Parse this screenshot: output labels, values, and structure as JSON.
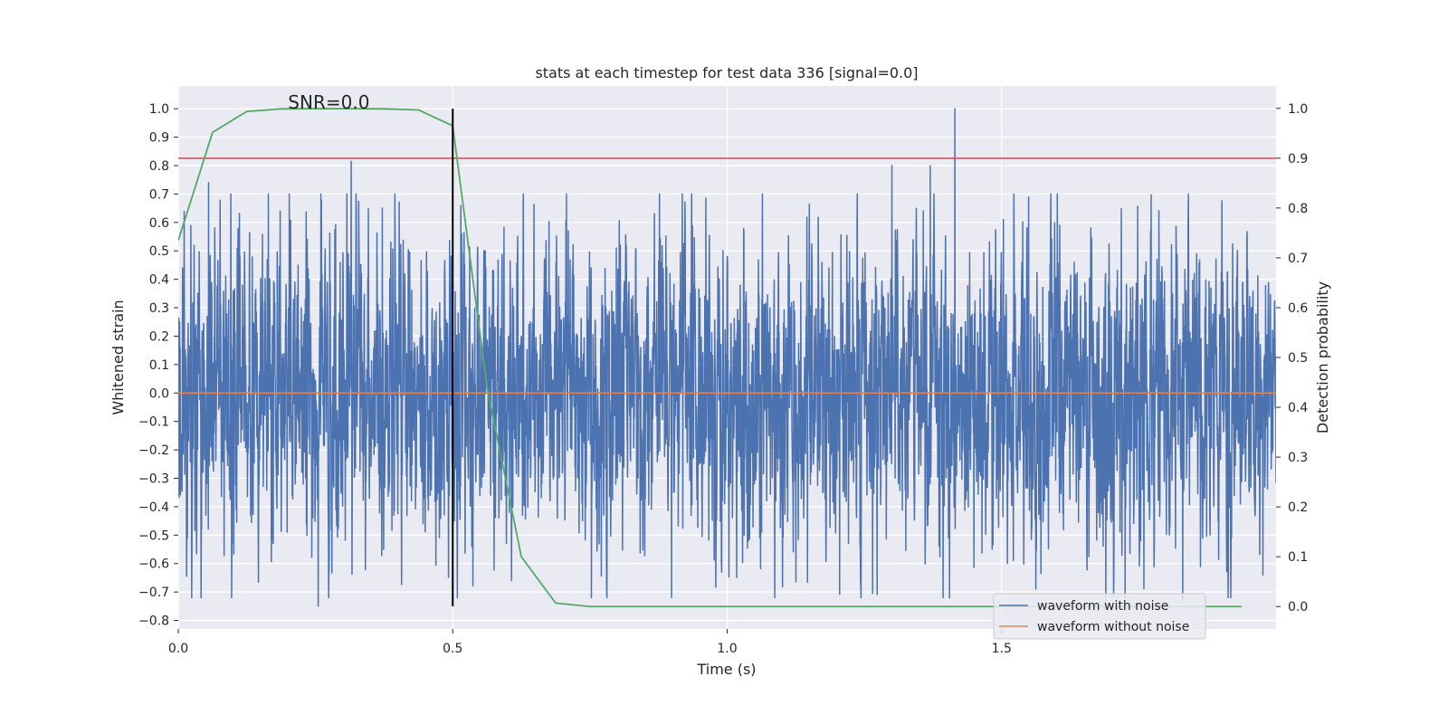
{
  "chart_data": {
    "type": "line",
    "title": "stats at each timestep for test data 336 [signal=0.0]",
    "xlabel": "Time (s)",
    "ylabel_left": "Whitened strain",
    "ylabel_right": "Detection probability",
    "xlim": [
      0.0,
      2.0
    ],
    "ylim_left": [
      -0.83,
      1.08
    ],
    "ylim_right": [
      -0.045,
      1.045
    ],
    "grid": true,
    "x_ticks": [
      0.0,
      0.5,
      1.0,
      1.5
    ],
    "x_tick_labels": [
      "0.0",
      "0.5",
      "1.0",
      "1.5"
    ],
    "y_left_ticks": [
      1.0,
      0.9,
      0.8,
      0.7,
      0.6,
      0.5,
      0.4,
      0.3,
      0.2,
      0.1,
      0.0,
      -0.1,
      -0.2,
      -0.3,
      -0.4,
      -0.5,
      -0.6,
      -0.7,
      -0.8
    ],
    "y_left_tick_labels": [
      "1.0",
      "0.9",
      "0.8",
      "0.7",
      "0.6",
      "0.5",
      "0.4",
      "0.3",
      "0.2",
      "0.1",
      "0.0",
      "−0.1",
      "−0.2",
      "−0.3",
      "−0.4",
      "−0.5",
      "−0.6",
      "−0.7",
      "−0.8"
    ],
    "y_right_ticks": [
      1.0,
      0.9,
      0.8,
      0.7,
      0.6,
      0.5,
      0.4,
      0.3,
      0.2,
      0.1,
      0.0
    ],
    "y_right_tick_labels": [
      "1.0",
      "0.9",
      "0.8",
      "0.7",
      "0.6",
      "0.5",
      "0.4",
      "0.3",
      "0.2",
      "0.1",
      "0.0"
    ],
    "annotation": "SNR=0.0",
    "annotation_position": {
      "x": 0.2,
      "y": 1.0
    },
    "series": [
      {
        "name": "waveform with noise",
        "axis": "left",
        "color": "#4c72b0",
        "x_range": [
          0.0,
          2.0
        ],
        "n_points": 4096,
        "noise_std": 0.25,
        "noise_seed": 336,
        "notable_peaks": [
          {
            "x": 0.055,
            "y": 0.74
          },
          {
            "x": 0.315,
            "y": 0.815
          },
          {
            "x": 0.255,
            "y": -0.75
          },
          {
            "x": 0.515,
            "y": 0.66
          },
          {
            "x": 1.415,
            "y": 1.0
          },
          {
            "x": 1.3,
            "y": 0.8
          },
          {
            "x": 1.37,
            "y": 0.8
          },
          {
            "x": 1.265,
            "y": -0.705
          },
          {
            "x": 1.69,
            "y": -0.745
          },
          {
            "x": 1.83,
            "y": -0.73
          }
        ]
      },
      {
        "name": "waveform without noise",
        "axis": "left",
        "color": "#dd8452",
        "x": [
          0.0,
          2.0
        ],
        "y": [
          0.0,
          0.0
        ]
      },
      {
        "name": "detection probability",
        "axis": "right",
        "color": "#55a868",
        "x": [
          0.0,
          0.0625,
          0.125,
          0.1875,
          0.25,
          0.3125,
          0.375,
          0.4375,
          0.5,
          0.5625,
          0.625,
          0.6875,
          0.75,
          0.8125,
          0.875,
          0.9375,
          1.0,
          1.0625,
          1.125,
          1.1875,
          1.25,
          1.3125,
          1.375,
          1.4375,
          1.5,
          1.5625,
          1.625,
          1.6875,
          1.75,
          1.8125,
          1.875,
          1.9375
        ],
        "y": [
          0.735,
          0.952,
          0.994,
          0.999,
          0.9995,
          0.9995,
          0.999,
          0.997,
          0.965,
          0.44,
          0.1,
          0.007,
          0.0,
          0.0,
          0.0,
          0.0,
          0.0,
          0.0,
          0.0,
          0.0,
          0.0,
          0.0,
          0.0,
          0.0,
          0.0,
          0.0,
          0.0,
          0.0,
          0.0,
          0.0,
          0.0,
          0.0
        ]
      },
      {
        "name": "threshold",
        "axis": "right",
        "color": "#c44e52",
        "y": 0.9
      },
      {
        "name": "marker",
        "axis": "left",
        "color": "#000000",
        "x": 0.5,
        "y_range": [
          -0.75,
          1.0
        ]
      }
    ],
    "legend": {
      "placement": "lower-right",
      "entries": [
        {
          "label": "waveform with noise",
          "color": "#4c72b0"
        },
        {
          "label": "waveform without noise",
          "color": "#dd8452"
        }
      ]
    }
  }
}
